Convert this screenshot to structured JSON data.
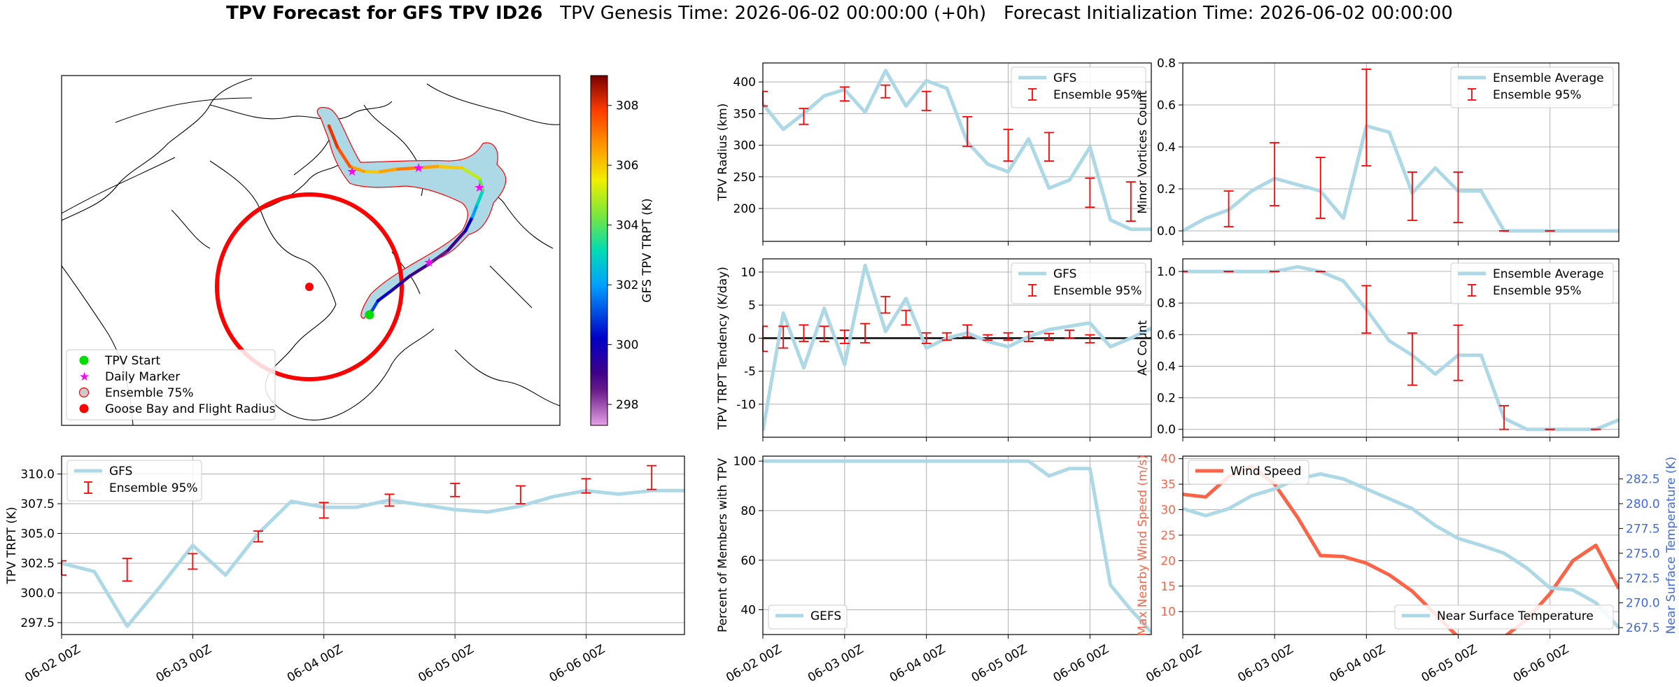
{
  "figure": {
    "title_bold": "TPV Forecast for GFS TPV ID26",
    "title_genesis": "TPV Genesis Time: 2026-06-02 00:00:00 (+0h)",
    "title_init": "Forecast Initialization Time: 2026-06-02 00:00:00"
  },
  "colors": {
    "gfs": "#add8e6",
    "ensemble_err": "#ff0000",
    "wind": "#ff6347",
    "temp_axis": "#4169e1",
    "goose_circle": "#ff0000",
    "ensemble_shade": "#add8e6",
    "start_marker": "#00dd00",
    "daily_marker": "#ff00ff"
  },
  "time_axis": {
    "tick_labels": [
      "06-02 00Z",
      "06-03 00Z",
      "06-04 00Z",
      "06-05 00Z",
      "06-06 00Z"
    ],
    "tick_days": [
      0,
      1,
      2,
      3,
      4
    ],
    "step_days": 0.25,
    "end_days": 4.75
  },
  "map_panel": {
    "legend": [
      "TPV Start",
      "Daily Marker",
      "Ensemble 75%",
      "Goose Bay and Flight Radius"
    ],
    "colorbar": {
      "label": "GFS TPV TRPT (K)",
      "min": 297.3,
      "max": 309.0,
      "ticks": [
        298,
        300,
        302,
        304,
        306,
        308
      ]
    },
    "track_trpt": [
      301.0,
      300.0,
      299.5,
      299.0,
      298.5,
      299.0,
      300.0,
      302.0,
      303.0,
      304.0,
      305.0,
      306.0,
      306.5,
      307.0,
      306.5,
      306.0,
      306.5,
      307.5,
      308.0,
      308.5
    ]
  },
  "chart_data": [
    {
      "type": "line",
      "ylabel": "TPV Radius (km)",
      "ylim": [
        148,
        430
      ],
      "yticks": [
        200,
        250,
        300,
        350,
        400
      ],
      "legend": [
        "GFS",
        "Ensemble 95%"
      ],
      "legend_position": "top-right",
      "grid": true,
      "series": [
        {
          "name": "GFS",
          "values": [
            365,
            325,
            350,
            378,
            388,
            352,
            418,
            362,
            402,
            390,
            305,
            270,
            258,
            310,
            232,
            245,
            297,
            182,
            167,
            167
          ]
        }
      ],
      "errorbars": [
        {
          "x": 0.0,
          "low": 362,
          "high": 385
        },
        {
          "x": 0.5,
          "low": 333,
          "high": 358
        },
        {
          "x": 1.0,
          "low": 370,
          "high": 392
        },
        {
          "x": 1.5,
          "low": 375,
          "high": 395
        },
        {
          "x": 2.0,
          "low": 355,
          "high": 385
        },
        {
          "x": 2.5,
          "low": 298,
          "high": 345
        },
        {
          "x": 3.0,
          "low": 275,
          "high": 325
        },
        {
          "x": 3.5,
          "low": 275,
          "high": 320
        },
        {
          "x": 4.0,
          "low": 202,
          "high": 248
        },
        {
          "x": 4.5,
          "low": 180,
          "high": 242
        }
      ]
    },
    {
      "type": "line",
      "ylabel": "Minor Vortices Count",
      "ylim": [
        -0.05,
        0.8
      ],
      "yticks": [
        0.0,
        0.2,
        0.4,
        0.6,
        0.8
      ],
      "legend": [
        "Ensemble Average",
        "Ensemble 95%"
      ],
      "legend_position": "top-right",
      "grid": true,
      "series": [
        {
          "name": "Ensemble Average",
          "values": [
            0.0,
            0.06,
            0.1,
            0.19,
            0.25,
            0.22,
            0.19,
            0.06,
            0.5,
            0.47,
            0.18,
            0.3,
            0.19,
            0.19,
            0.0,
            0.0,
            0.0,
            0.0,
            0.0,
            0.0
          ]
        }
      ],
      "errorbars": [
        {
          "x": 0.5,
          "low": 0.02,
          "high": 0.19
        },
        {
          "x": 1.0,
          "low": 0.12,
          "high": 0.42
        },
        {
          "x": 1.5,
          "low": 0.06,
          "high": 0.35
        },
        {
          "x": 2.0,
          "low": 0.31,
          "high": 0.77
        },
        {
          "x": 2.5,
          "low": 0.05,
          "high": 0.28
        },
        {
          "x": 3.0,
          "low": 0.04,
          "high": 0.28
        },
        {
          "x": 3.5,
          "low": 0.0,
          "high": 0.0
        },
        {
          "x": 4.0,
          "low": 0.0,
          "high": 0.0
        }
      ]
    },
    {
      "type": "line",
      "ylabel": "TPV TRPT Tendency (K/day)",
      "ylim": [
        -15,
        12
      ],
      "yticks": [
        -10,
        -5,
        0,
        5,
        10
      ],
      "zero_line": true,
      "legend": [
        "GFS",
        "Ensemble 95%"
      ],
      "legend_position": "top-right",
      "grid": true,
      "series": [
        {
          "name": "GFS",
          "values": [
            -14,
            3.8,
            -4.5,
            4.5,
            -4,
            11,
            1.0,
            6,
            -1.5,
            0.0,
            0.8,
            -0.5,
            -1.3,
            0.2,
            1.3,
            1.8,
            2.3,
            -1.3,
            0.0,
            1.5
          ]
        }
      ],
      "errorbars": [
        {
          "x": 0.0,
          "low": -2.0,
          "high": 1.8
        },
        {
          "x": 0.25,
          "low": -1.5,
          "high": 1.8
        },
        {
          "x": 0.5,
          "low": -0.5,
          "high": 2.0
        },
        {
          "x": 0.75,
          "low": -0.5,
          "high": 1.8
        },
        {
          "x": 1.0,
          "low": -0.8,
          "high": 1.2
        },
        {
          "x": 1.25,
          "low": -0.7,
          "high": 2.2
        },
        {
          "x": 1.5,
          "low": 3.8,
          "high": 6.3
        },
        {
          "x": 1.75,
          "low": 2.0,
          "high": 4.2
        },
        {
          "x": 2.0,
          "low": -0.8,
          "high": 0.8
        },
        {
          "x": 2.25,
          "low": -0.3,
          "high": 0.8
        },
        {
          "x": 2.5,
          "low": 0.2,
          "high": 2.0
        },
        {
          "x": 2.75,
          "low": -0.3,
          "high": 0.5
        },
        {
          "x": 3.0,
          "low": -0.3,
          "high": 0.8
        },
        {
          "x": 3.25,
          "low": -0.5,
          "high": 1.0
        },
        {
          "x": 3.5,
          "low": -0.3,
          "high": 0.7
        },
        {
          "x": 3.75,
          "low": 0.0,
          "high": 1.2
        },
        {
          "x": 4.0,
          "low": -0.7,
          "high": 0.5
        }
      ]
    },
    {
      "type": "line",
      "ylabel": "AC Count",
      "ylim": [
        -0.05,
        1.08
      ],
      "yticks": [
        0.0,
        0.2,
        0.4,
        0.6,
        0.8,
        1.0
      ],
      "legend": [
        "Ensemble Average",
        "Ensemble 95%"
      ],
      "legend_position": "top-right",
      "grid": true,
      "series": [
        {
          "name": "Ensemble Average",
          "values": [
            1.0,
            1.0,
            1.0,
            1.0,
            1.0,
            1.03,
            1.0,
            0.94,
            0.76,
            0.56,
            0.47,
            0.35,
            0.47,
            0.47,
            0.07,
            0.0,
            0.0,
            0.0,
            0.0,
            0.06
          ]
        }
      ],
      "errorbars": [
        {
          "x": 0.0,
          "low": 1.0,
          "high": 1.0
        },
        {
          "x": 0.5,
          "low": 1.0,
          "high": 1.0
        },
        {
          "x": 1.0,
          "low": 1.0,
          "high": 1.0
        },
        {
          "x": 1.5,
          "low": 1.0,
          "high": 1.0
        },
        {
          "x": 2.0,
          "low": 0.61,
          "high": 0.91
        },
        {
          "x": 2.5,
          "low": 0.28,
          "high": 0.61
        },
        {
          "x": 3.0,
          "low": 0.31,
          "high": 0.66
        },
        {
          "x": 3.5,
          "low": 0.0,
          "high": 0.15
        },
        {
          "x": 4.0,
          "low": 0.0,
          "high": 0.0
        },
        {
          "x": 4.5,
          "low": 0.0,
          "high": 0.0
        }
      ]
    },
    {
      "type": "line",
      "ylabel": "TPV TRPT (K)",
      "ylim": [
        296.5,
        311.5
      ],
      "yticks": [
        297.5,
        300.0,
        302.5,
        305.0,
        307.5,
        310.0
      ],
      "legend": [
        "GFS",
        "Ensemble 95%"
      ],
      "legend_position": "top-left",
      "grid": true,
      "series": [
        {
          "name": "GFS",
          "values": [
            302.5,
            301.8,
            297.2,
            300.5,
            304.0,
            301.5,
            305.0,
            307.7,
            307.2,
            307.2,
            307.8,
            307.4,
            307.0,
            306.8,
            307.3,
            308.1,
            308.6,
            308.3,
            308.6,
            308.6
          ]
        }
      ],
      "errorbars": [
        {
          "x": 0.0,
          "low": 301.5,
          "high": 302.7
        },
        {
          "x": 0.5,
          "low": 301.0,
          "high": 302.9
        },
        {
          "x": 1.0,
          "low": 302.0,
          "high": 303.3
        },
        {
          "x": 1.5,
          "low": 304.3,
          "high": 305.2
        },
        {
          "x": 2.0,
          "low": 306.3,
          "high": 307.6
        },
        {
          "x": 2.5,
          "low": 307.3,
          "high": 308.3
        },
        {
          "x": 3.0,
          "low": 308.1,
          "high": 309.2
        },
        {
          "x": 3.5,
          "low": 307.5,
          "high": 309.0
        },
        {
          "x": 4.0,
          "low": 308.4,
          "high": 309.6
        },
        {
          "x": 4.5,
          "low": 308.7,
          "high": 310.7
        }
      ]
    },
    {
      "type": "line",
      "ylabel": "Percent of Members with TPV",
      "ylim": [
        30,
        102
      ],
      "yticks": [
        40,
        60,
        80,
        100
      ],
      "legend": [
        "GEFS"
      ],
      "legend_position": "bottom-left",
      "grid": true,
      "series": [
        {
          "name": "GEFS",
          "values": [
            100,
            100,
            100,
            100,
            100,
            100,
            100,
            100,
            100,
            100,
            100,
            100,
            100,
            100,
            94,
            97,
            97,
            50,
            40,
            31
          ]
        }
      ]
    },
    {
      "type": "line",
      "ylabel": "Max Nearby Wind Speed (m/s)",
      "ylabel_right": "Near Surface Temperature (K)",
      "ylim": [
        5.5,
        40.5
      ],
      "ylim_right": [
        266.8,
        284.8
      ],
      "yticks": [
        10,
        15,
        20,
        25,
        30,
        35,
        40
      ],
      "yticks_right": [
        267.5,
        270.0,
        272.5,
        275.0,
        277.5,
        280.0,
        282.5
      ],
      "legend": [
        "Wind Speed",
        "Near Surface Temperature"
      ],
      "legend_position": "top-left / bottom-right",
      "grid": true,
      "series": [
        {
          "name": "Wind Speed",
          "axis": "left",
          "values": [
            33,
            32.5,
            36.5,
            38.5,
            35.0,
            28.5,
            21.0,
            20.8,
            19.5,
            17.2,
            14.0,
            9.5,
            5.0,
            4.5,
            5.0,
            8.5,
            13.5,
            20.0,
            23.0,
            14.5
          ]
        },
        {
          "name": "Near Surface Temperature",
          "axis": "right",
          "values": [
            279.5,
            278.8,
            279.5,
            280.8,
            281.5,
            282.5,
            283.0,
            282.5,
            281.5,
            280.5,
            279.5,
            277.8,
            276.5,
            275.8,
            275.0,
            273.5,
            271.5,
            271.3,
            270.0,
            267.5
          ]
        }
      ]
    }
  ]
}
